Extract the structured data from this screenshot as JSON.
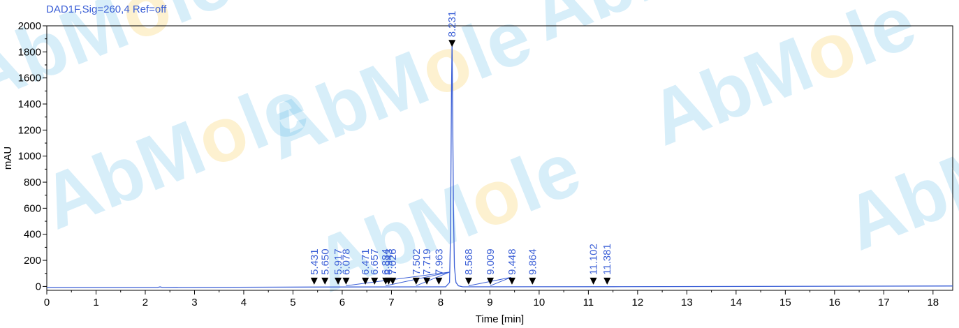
{
  "chart_data": {
    "type": "line",
    "title": "DAD1F,Sig=260,4  Ref=off",
    "xlabel": "Time [min]",
    "ylabel": "mAU",
    "xlim": [
      0,
      18.4
    ],
    "ylim": [
      -30,
      2000
    ],
    "xticks": [
      0,
      1,
      2,
      3,
      4,
      5,
      6,
      7,
      8,
      9,
      10,
      11,
      12,
      13,
      14,
      15,
      16,
      17,
      18
    ],
    "yticks": [
      0,
      200,
      400,
      600,
      800,
      1000,
      1200,
      1400,
      1600,
      1800,
      2000
    ],
    "grid": false,
    "series": [
      {
        "x": [
          0,
          2.25,
          2.3,
          2.35,
          5.4,
          8.1,
          8.18,
          8.2,
          8.22,
          8.231,
          8.24,
          8.26,
          8.28,
          8.31,
          8.36,
          8.45,
          11.5,
          18.4
        ],
        "y": [
          -8,
          -8,
          -4,
          -8,
          -5,
          -3,
          30,
          400,
          1500,
          1860,
          1500,
          600,
          150,
          30,
          5,
          -3,
          -2,
          3
        ]
      }
    ],
    "peaks": [
      {
        "rt": "5.431",
        "x": 5.431,
        "y": 40
      },
      {
        "rt": "5.650",
        "x": 5.65,
        "y": 40
      },
      {
        "rt": "5.917",
        "x": 5.917,
        "y": 40
      },
      {
        "rt": "6.078",
        "x": 6.078,
        "y": 40
      },
      {
        "rt": "6.471",
        "x": 6.471,
        "y": 40
      },
      {
        "rt": "6.657",
        "x": 6.657,
        "y": 40
      },
      {
        "rt": "6.884",
        "x": 6.884,
        "y": 40
      },
      {
        "rt": "6.943",
        "x": 6.943,
        "y": 40
      },
      {
        "rt": "7.026",
        "x": 7.026,
        "y": 40
      },
      {
        "rt": "7.502",
        "x": 7.502,
        "y": 40
      },
      {
        "rt": "7.719",
        "x": 7.719,
        "y": 40
      },
      {
        "rt": "7.963",
        "x": 7.963,
        "y": 40
      },
      {
        "rt": "8.231",
        "x": 8.231,
        "y": 1865
      },
      {
        "rt": "8.568",
        "x": 8.568,
        "y": 40
      },
      {
        "rt": "9.009",
        "x": 9.009,
        "y": 40
      },
      {
        "rt": "9.448",
        "x": 9.448,
        "y": 40
      },
      {
        "rt": "9.864",
        "x": 9.864,
        "y": 40
      },
      {
        "rt": "11.102",
        "x": 11.102,
        "y": 40
      },
      {
        "rt": "11.381",
        "x": 11.381,
        "y": 40
      }
    ],
    "colors": {
      "trace": "#3b5fd6",
      "axis": "#000000",
      "marker": "#000000"
    }
  },
  "watermark": {
    "text_a": "AbM",
    "text_o": "o",
    "text_b": "le",
    "color_main": "#29a3e0",
    "color_o": "#f5b400"
  }
}
